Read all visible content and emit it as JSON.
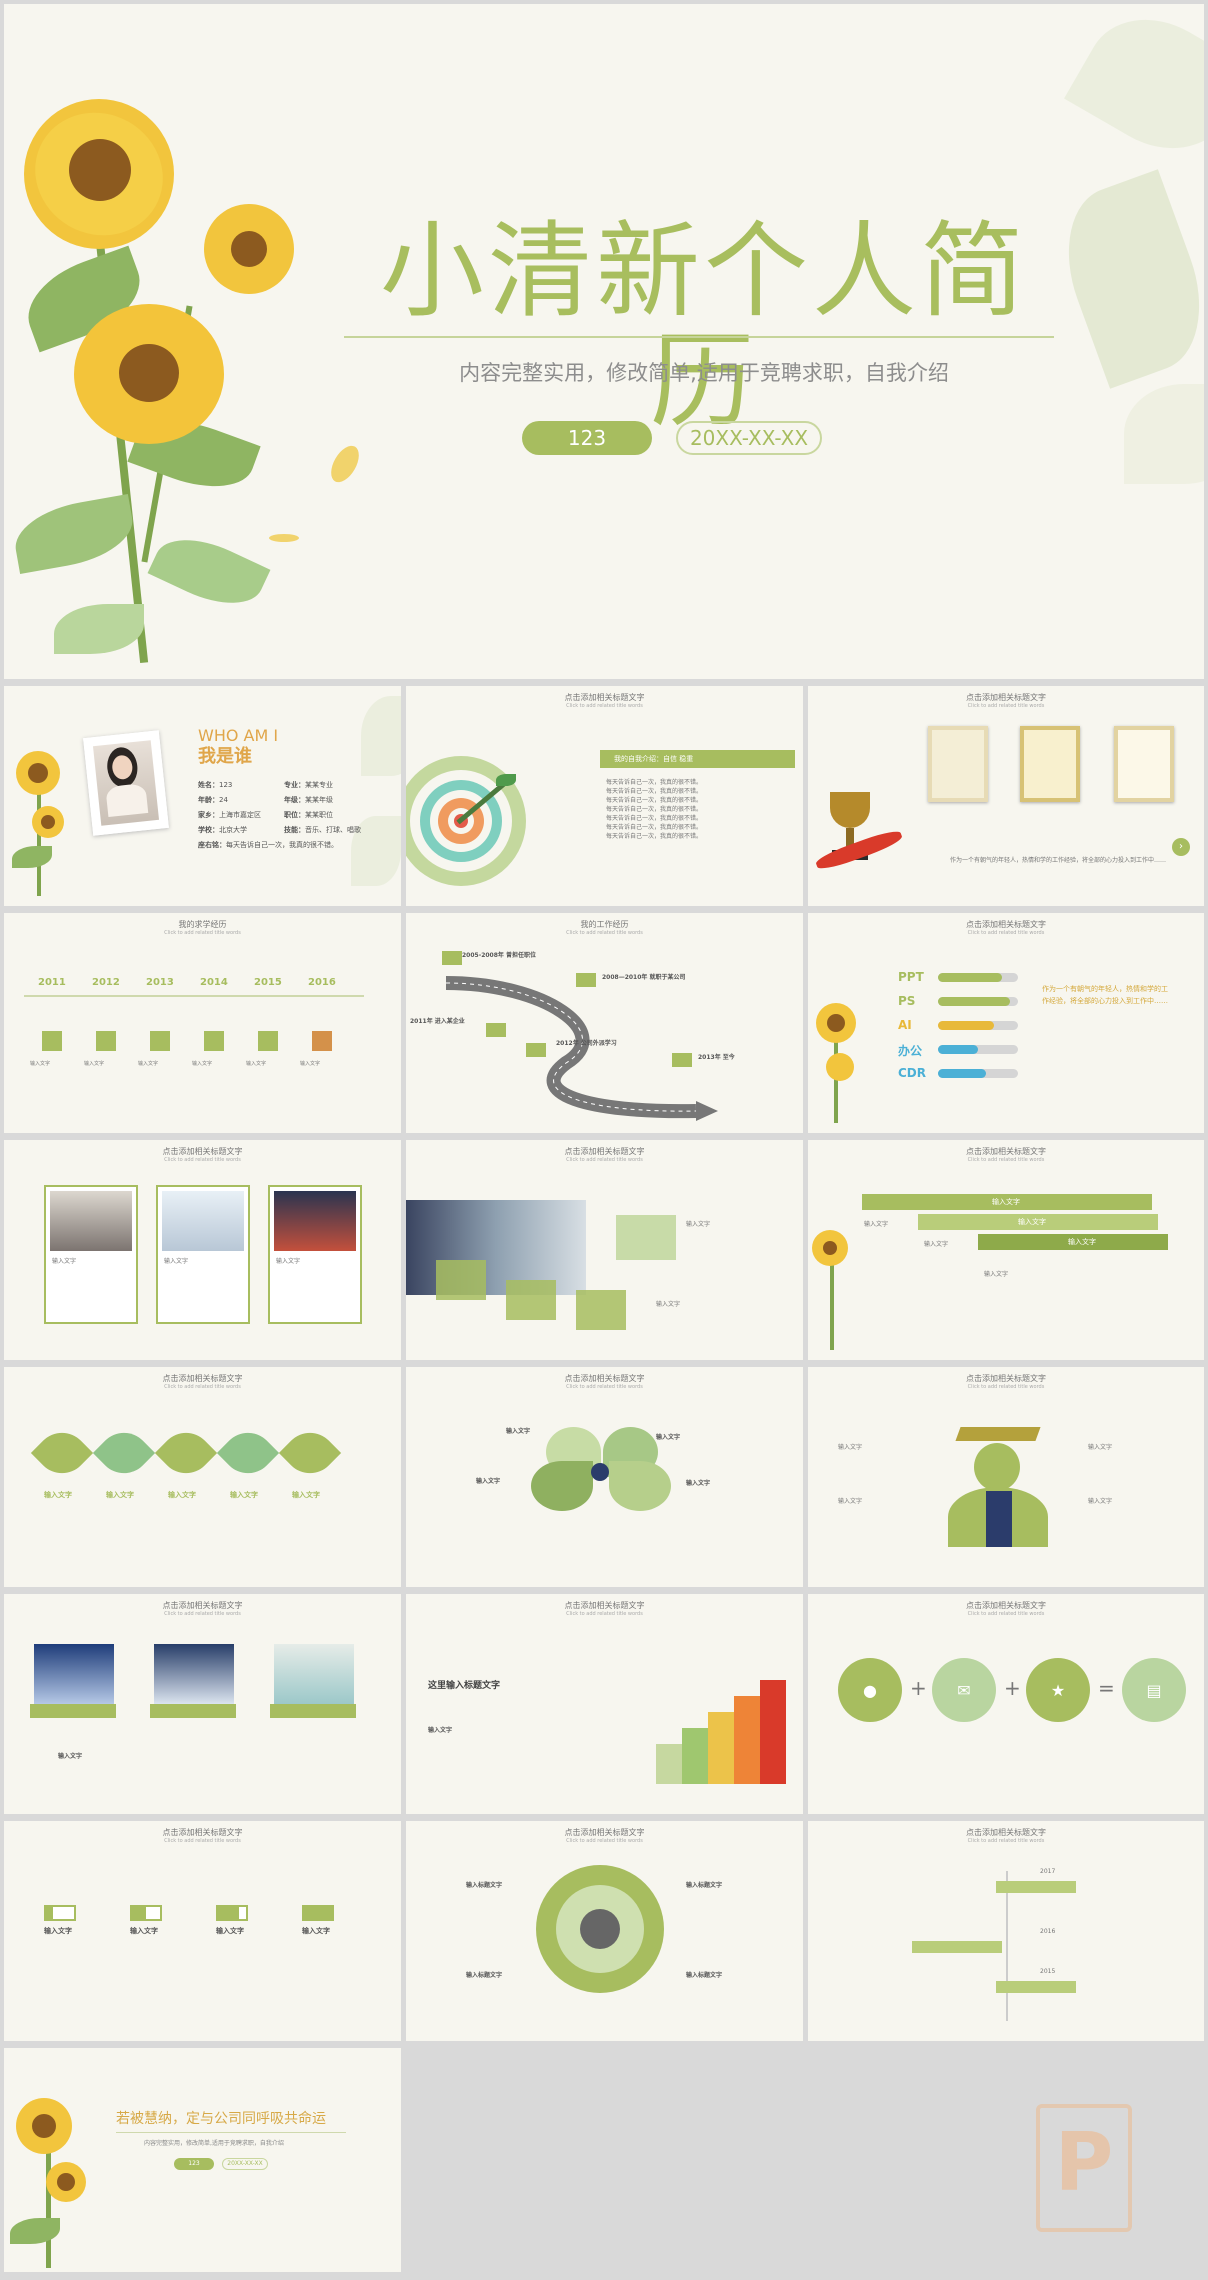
{
  "hero": {
    "title": "小清新个人简历",
    "subtitle": "内容完整实用，修改简单,适用于竞聘求职，自我介绍",
    "pill_number": "123",
    "pill_date": "20XX-XX-XX"
  },
  "common": {
    "slide_title": "点击添加相关标题文字",
    "slide_subtitle": "Click to add related title words",
    "input_text": "输入文字",
    "input_title": "输入标题文字"
  },
  "about": {
    "eyebrow": "WHO AM I",
    "title": "我是谁",
    "rows": [
      {
        "k1": "姓名：",
        "v1": "123",
        "k2": "专业：",
        "v2": "某某专业"
      },
      {
        "k1": "年龄：",
        "v1": "24",
        "k2": "年级：",
        "v2": "某某年级"
      },
      {
        "k1": "家乡：",
        "v1": "上海市嘉定区",
        "k2": "职位：",
        "v2": "某某职位"
      },
      {
        "k1": "学校：",
        "v1": "北京大学",
        "k2": "技能：",
        "v2": "音乐、打球、唱歌"
      }
    ],
    "motto_key": "座右铭：",
    "motto": "每天告诉自己一次，我真的很不错。"
  },
  "timeline1": {
    "title": "我的求学经历",
    "years": [
      "2011",
      "2012",
      "2013",
      "2014",
      "2015",
      "2016"
    ]
  },
  "work": {
    "title": "我的工作经历",
    "events": [
      "2005-2008年 曾担任职位",
      "2008—2010年 就职于某公司",
      "2011年 进入某企业",
      "2012年 公司外派学习",
      "2013年 至今"
    ]
  },
  "banner": {
    "label": "我的自我介绍：自信 稳重"
  },
  "skills": {
    "items": [
      {
        "name": "PPT",
        "value": 0.8,
        "color": "#a7bd5f"
      },
      {
        "name": "PS",
        "value": 0.9,
        "color": "#a7bd5f"
      },
      {
        "name": "AI",
        "value": 0.7,
        "color": "#e8b93a"
      },
      {
        "name": "办公",
        "value": 0.5,
        "color": "#4bb0d6"
      },
      {
        "name": "CDR",
        "value": 0.6,
        "color": "#4bb0d6"
      }
    ],
    "desc": "作为一个有朝气的年轻人，热情和学的工作经验，将全部的心力投入到工作中……"
  },
  "closing": {
    "title": "若被慧纳，定与公司同呼吸共命运",
    "subtitle": "内容完整实用，修改简单,适用于竞聘求职，自我介绍",
    "pill_number": "123",
    "pill_date": "20XX-XX-XX"
  },
  "growth": {
    "title": "这里输入标题文字"
  },
  "timeline3": {
    "years": [
      "2017",
      "2016",
      "2015"
    ]
  },
  "watermark": {
    "letter": "P"
  }
}
